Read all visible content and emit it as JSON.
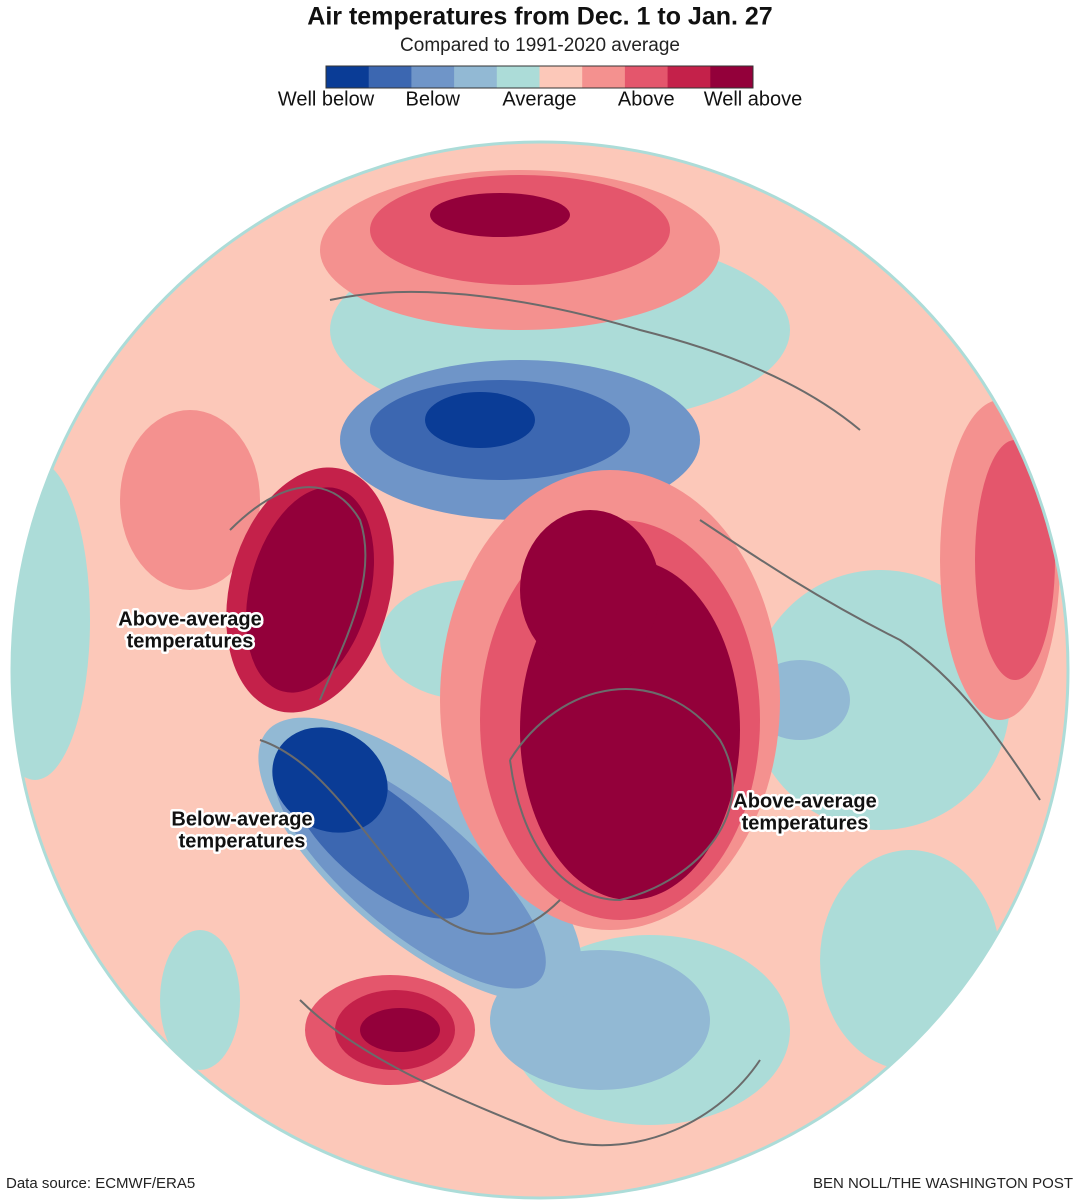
{
  "header": {
    "title": "Air temperatures from Dec. 1 to Jan. 27",
    "subtitle": "Compared to 1991-2020 average"
  },
  "legend": {
    "colors": [
      "#0a3c96",
      "#3c67b1",
      "#6f95c8",
      "#92b9d4",
      "#acdcd8",
      "#fcc8b9",
      "#f4918f",
      "#e4566c",
      "#c4214a",
      "#93003a"
    ],
    "labels": [
      "Well below",
      "Below",
      "Average",
      "Above",
      "Well above"
    ]
  },
  "annotations": [
    {
      "lines": [
        "Above-average",
        "temperatures"
      ]
    },
    {
      "lines": [
        "Below-average",
        "temperatures"
      ]
    },
    {
      "lines": [
        "Above-average",
        "temperatures"
      ]
    }
  ],
  "footer": {
    "source": "Data source: ECMWF/ERA5",
    "credit": "BEN NOLL/THE WASHINGTON POST"
  }
}
